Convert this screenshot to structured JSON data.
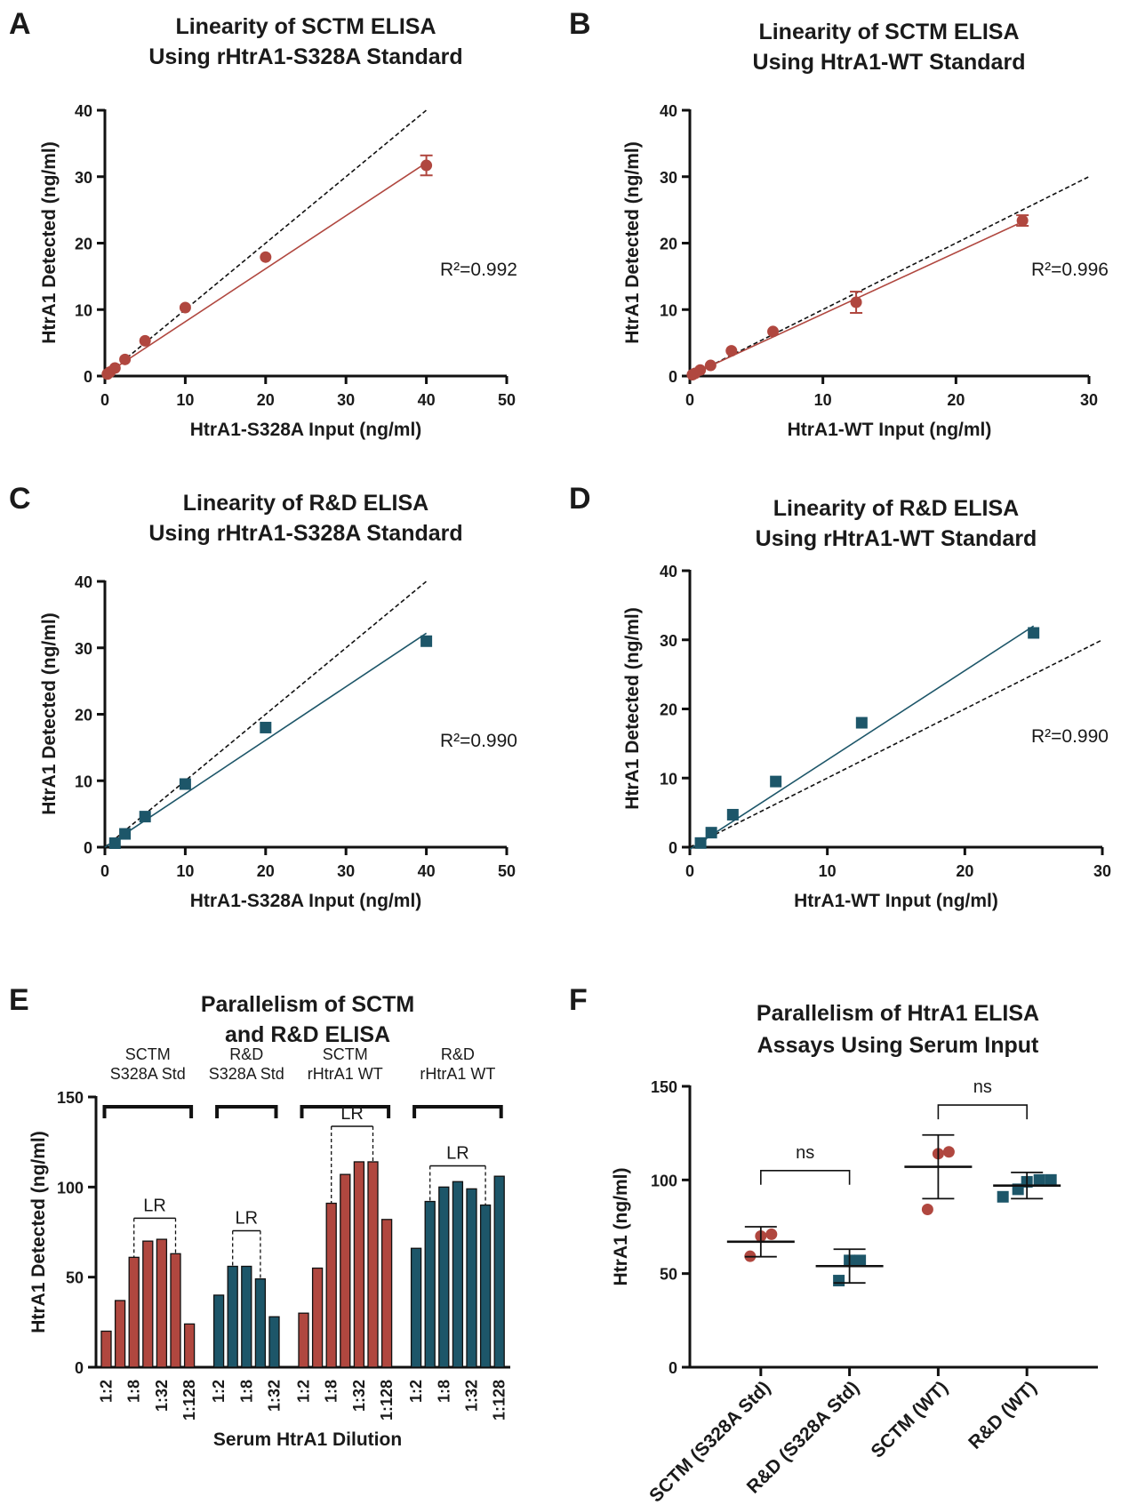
{
  "colors": {
    "red": "#b0473f",
    "blue": "#1d5669",
    "black": "#111111",
    "identity": "#111111"
  },
  "panels": [
    {
      "letter": "A",
      "chart_data": {
        "type": "scatter",
        "title_lines": [
          "Linearity of SCTM ELISA",
          "Using rHtrA1-S328A Standard"
        ],
        "xlabel": "HtrA1-S328A Input (ng/ml)",
        "ylabel": "HtrA1 Detected (ng/ml)",
        "xlim": [
          0,
          50
        ],
        "ylim": [
          0,
          40
        ],
        "xticks": [
          0,
          10,
          20,
          30,
          40,
          50
        ],
        "yticks": [
          0,
          10,
          20,
          30,
          40
        ],
        "marker": "circle",
        "color": "#b0473f",
        "points": [
          {
            "x": 0.3125,
            "y": 0.3
          },
          {
            "x": 0.625,
            "y": 0.6
          },
          {
            "x": 1.25,
            "y": 1.2
          },
          {
            "x": 2.5,
            "y": 2.5
          },
          {
            "x": 5,
            "y": 5.3
          },
          {
            "x": 10,
            "y": 10.3
          },
          {
            "x": 20,
            "y": 17.9
          },
          {
            "x": 40,
            "y": 31.7,
            "err": 1.5
          }
        ],
        "fit_line": [
          [
            0,
            0.2
          ],
          [
            40,
            32.1
          ]
        ],
        "identity_line": [
          [
            0,
            0
          ],
          [
            40,
            40
          ]
        ],
        "r2_label": "R²=0.992"
      }
    },
    {
      "letter": "B",
      "chart_data": {
        "type": "scatter",
        "title_lines": [
          "Linearity of SCTM ELISA",
          "Using HtrA1-WT Standard"
        ],
        "xlabel": "HtrA1-WT Input (ng/ml)",
        "ylabel": "HtrA1 Detected (ng/ml)",
        "xlim": [
          0,
          30
        ],
        "ylim": [
          0,
          40
        ],
        "xticks": [
          0,
          10,
          20,
          30
        ],
        "yticks": [
          0,
          10,
          20,
          30,
          40
        ],
        "marker": "circle",
        "color": "#b0473f",
        "points": [
          {
            "x": 0.195,
            "y": 0.2
          },
          {
            "x": 0.39,
            "y": 0.4
          },
          {
            "x": 0.78,
            "y": 0.9
          },
          {
            "x": 1.56,
            "y": 1.6
          },
          {
            "x": 3.125,
            "y": 3.8
          },
          {
            "x": 6.25,
            "y": 6.7
          },
          {
            "x": 12.5,
            "y": 11.1,
            "err": 1.6
          },
          {
            "x": 25,
            "y": 23.4,
            "err": 0.8
          }
        ],
        "fit_line": [
          [
            0,
            0.1
          ],
          [
            25,
            23.2
          ]
        ],
        "identity_line": [
          [
            0,
            0
          ],
          [
            30,
            30
          ]
        ],
        "r2_label": "R²=0.996"
      }
    },
    {
      "letter": "C",
      "chart_data": {
        "type": "scatter",
        "title_lines": [
          "Linearity of R&D ELISA",
          "Using rHtrA1-S328A Standard"
        ],
        "xlabel": "HtrA1-S328A Input (ng/ml)",
        "ylabel": "HtrA1 Detected (ng/ml)",
        "xlim": [
          0,
          50
        ],
        "ylim": [
          0,
          40
        ],
        "xticks": [
          0,
          10,
          20,
          30,
          40,
          50
        ],
        "yticks": [
          0,
          10,
          20,
          30,
          40
        ],
        "marker": "square",
        "color": "#1d5669",
        "points": [
          {
            "x": 1.25,
            "y": 0.6
          },
          {
            "x": 2.5,
            "y": 2.0
          },
          {
            "x": 5,
            "y": 4.6
          },
          {
            "x": 10,
            "y": 9.5
          },
          {
            "x": 20,
            "y": 18.0
          },
          {
            "x": 40,
            "y": 31.0
          }
        ],
        "fit_line": [
          [
            0,
            0
          ],
          [
            40,
            32.2
          ]
        ],
        "identity_line": [
          [
            0,
            0
          ],
          [
            40,
            40
          ]
        ],
        "r2_label": "R²=0.990"
      }
    },
    {
      "letter": "D",
      "chart_data": {
        "type": "scatter",
        "title_lines": [
          "Linearity of R&D ELISA",
          "Using rHtrA1-WT Standard"
        ],
        "xlabel": "HtrA1-WT Input (ng/ml)",
        "ylabel": "HtrA1 Detected (ng/ml)",
        "xlim": [
          0,
          30
        ],
        "ylim": [
          0,
          40
        ],
        "xticks": [
          0,
          10,
          20,
          30
        ],
        "yticks": [
          0,
          10,
          20,
          30,
          40
        ],
        "marker": "square",
        "color": "#1d5669",
        "points": [
          {
            "x": 0.78,
            "y": 0.6
          },
          {
            "x": 1.56,
            "y": 2.1
          },
          {
            "x": 3.125,
            "y": 4.7
          },
          {
            "x": 6.25,
            "y": 9.5
          },
          {
            "x": 12.5,
            "y": 18.0
          },
          {
            "x": 25,
            "y": 31.0
          }
        ],
        "fit_line": [
          [
            0,
            -0.3
          ],
          [
            25,
            32.0
          ]
        ],
        "identity_line": [
          [
            0,
            0
          ],
          [
            30,
            30
          ]
        ],
        "r2_label": "R²=0.990"
      }
    },
    {
      "letter": "E",
      "chart_data": {
        "type": "bar",
        "title_lines": [
          "Parallelism of SCTM",
          "and R&D ELISA"
        ],
        "xlabel": "Serum HtrA1 Dilution",
        "ylabel": "HtrA1 Detected (ng/ml)",
        "ylim": [
          0,
          150
        ],
        "yticks": [
          0,
          50,
          100,
          150
        ],
        "tick_labels": [
          "1:2",
          "1:8",
          "1:32",
          "1:128",
          "1:2",
          "1:8",
          "1:32",
          "1:2",
          "1:8",
          "1:32",
          "1:128",
          "1:2",
          "1:8",
          "1:32",
          "1:128"
        ],
        "groups": [
          {
            "label_lines": [
              "SCTM",
              "S328A Std"
            ],
            "color": "#b0473f",
            "values": [
              20,
              37,
              61,
              70,
              71,
              63,
              24
            ],
            "lr_range": [
              2,
              5
            ]
          },
          {
            "label_lines": [
              "R&D",
              "S328A Std"
            ],
            "color": "#1d5669",
            "values": [
              40,
              56,
              56,
              49,
              28
            ],
            "lr_range": [
              1,
              3
            ]
          },
          {
            "label_lines": [
              "SCTM",
              "rHtrA1 WT"
            ],
            "color": "#b0473f",
            "values": [
              30,
              55,
              91,
              107,
              114,
              114,
              82
            ],
            "lr_range": [
              2,
              5
            ]
          },
          {
            "label_lines": [
              "R&D",
              "rHtrA1 WT"
            ],
            "color": "#1d5669",
            "values": [
              66,
              92,
              100,
              103,
              99,
              90,
              106
            ],
            "lr_range": [
              1,
              5
            ]
          }
        ],
        "lr_label": "LR"
      }
    },
    {
      "letter": "F",
      "chart_data": {
        "type": "scatter",
        "title_lines": [
          "Parallelism of HtrA1 ELISA",
          "Assays Using Serum Input"
        ],
        "ylabel": "HtrA1 (ng/ml)",
        "ylim": [
          0,
          150
        ],
        "yticks": [
          0,
          50,
          100,
          150
        ],
        "groups": [
          {
            "label": "SCTM (S328A Std)",
            "marker": "circle",
            "color": "#b0473f",
            "values": [
              64,
              70,
              71
            ],
            "mean": 67,
            "sd": 8
          },
          {
            "label": "R&D (S328A Std)",
            "marker": "square",
            "color": "#1d5669",
            "values": [
              51,
              57,
              57
            ],
            "mean": 54,
            "sd": 9
          },
          {
            "label": "SCTM (WT)",
            "marker": "circle",
            "color": "#b0473f",
            "values": [
              89,
              114,
              115
            ],
            "mean": 107,
            "sd": 17
          },
          {
            "label": "R&D (WT)",
            "marker": "square",
            "color": "#1d5669",
            "values": [
              91,
              95,
              99,
              100,
              100
            ],
            "mean": 97,
            "sd": 7
          }
        ],
        "comparisons": [
          {
            "between": [
              0,
              1
            ],
            "label": "ns",
            "y": 105
          },
          {
            "between": [
              2,
              3
            ],
            "label": "ns",
            "y": 140
          }
        ]
      }
    }
  ]
}
